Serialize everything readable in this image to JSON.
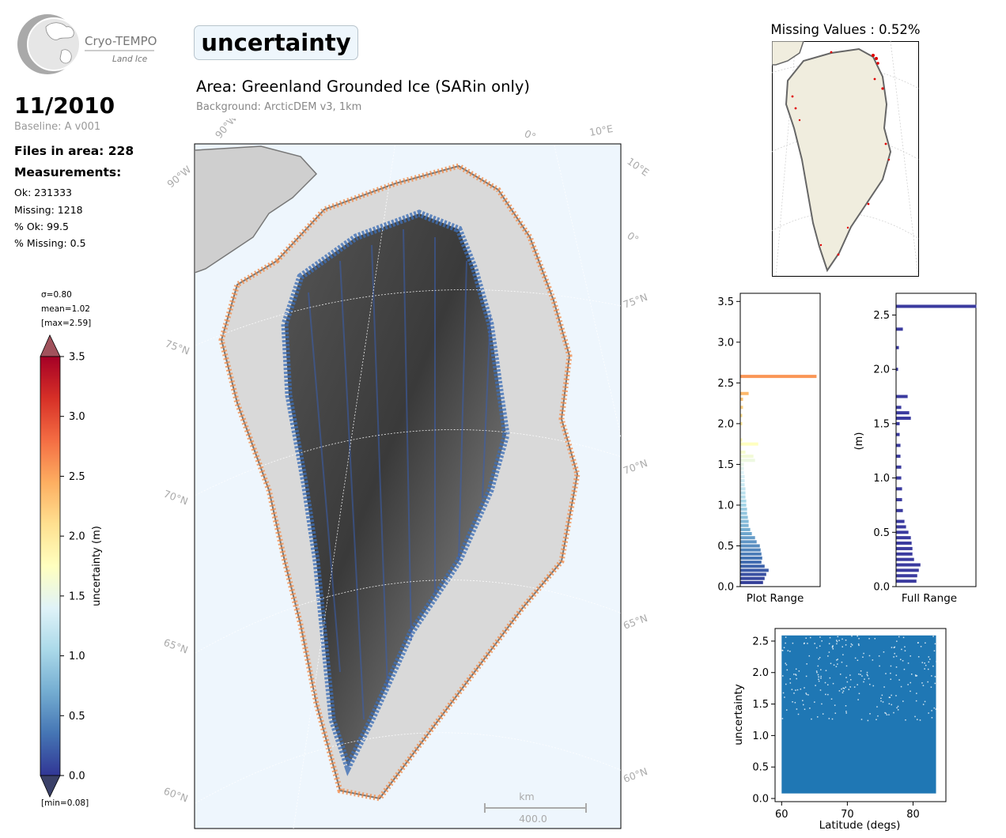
{
  "logo": {
    "name": "Cryo-TEMPO",
    "subtitle": "Land Ice"
  },
  "title": "uncertainty",
  "area": "Area: Greenland Grounded Ice (SARin only)",
  "background": "Background: ArcticDEM v3, 1km",
  "date": "11/2010",
  "baseline": "Baseline: A v001",
  "files": "Files in area: 228",
  "measurements_heading": "Measurements:",
  "stats": {
    "ok": "Ok: 231333",
    "missing": "Missing: 1218",
    "pct_ok": "% Ok: 99.5",
    "pct_missing": "% Missing: 0.5"
  },
  "missing_title": "Missing Values : 0.52%",
  "colors": {
    "low": "#313695",
    "mid": "#ffffbf",
    "high": "#a50026",
    "hist_full": "#3b3b9f",
    "scatter": "#1f77b4",
    "land": "#f0edde",
    "ocean": "#eef6fd"
  },
  "chart_data": [
    {
      "type": "colorbar",
      "label": "uncertainty (m)",
      "ticks": [
        "0.0",
        "0.5",
        "1.0",
        "1.5",
        "2.0",
        "2.5",
        "3.0",
        "3.5"
      ],
      "range": [
        0,
        3.5
      ],
      "sigma": "σ=0.80",
      "mean": "mean=1.02",
      "max": "[max=2.59]",
      "min": "[min=0.08]"
    },
    {
      "type": "map",
      "lat_labels": [
        "75°N",
        "70°N",
        "65°N",
        "60°N",
        "75°N",
        "70°N",
        "65°N",
        "60°N"
      ],
      "lon_labels": [
        "90°W",
        "90°W",
        "0°",
        "10°E",
        "10°E",
        "0°"
      ],
      "scalebar_unit": "km",
      "scalebar_value": "400.0"
    },
    {
      "type": "bar",
      "xlabel": "Plot Range",
      "ylim": [
        0,
        3.6
      ],
      "yticks": [
        "0.0",
        "0.5",
        "1.0",
        "1.5",
        "2.0",
        "2.5",
        "3.0",
        "3.5"
      ],
      "bins": [
        {
          "y": 0.05,
          "v": 0.28
        },
        {
          "y": 0.1,
          "v": 0.3
        },
        {
          "y": 0.15,
          "v": 0.32
        },
        {
          "y": 0.2,
          "v": 0.35
        },
        {
          "y": 0.25,
          "v": 0.3
        },
        {
          "y": 0.3,
          "v": 0.26
        },
        {
          "y": 0.35,
          "v": 0.27
        },
        {
          "y": 0.4,
          "v": 0.26
        },
        {
          "y": 0.45,
          "v": 0.25
        },
        {
          "y": 0.5,
          "v": 0.24
        },
        {
          "y": 0.55,
          "v": 0.2
        },
        {
          "y": 0.6,
          "v": 0.18
        },
        {
          "y": 0.65,
          "v": 0.14
        },
        {
          "y": 0.7,
          "v": 0.12
        },
        {
          "y": 0.75,
          "v": 0.1
        },
        {
          "y": 0.8,
          "v": 0.1
        },
        {
          "y": 0.85,
          "v": 0.09
        },
        {
          "y": 0.9,
          "v": 0.08
        },
        {
          "y": 0.95,
          "v": 0.08
        },
        {
          "y": 1.0,
          "v": 0.07
        },
        {
          "y": 1.05,
          "v": 0.07
        },
        {
          "y": 1.1,
          "v": 0.06
        },
        {
          "y": 1.15,
          "v": 0.06
        },
        {
          "y": 1.2,
          "v": 0.06
        },
        {
          "y": 1.25,
          "v": 0.05
        },
        {
          "y": 1.3,
          "v": 0.05
        },
        {
          "y": 1.35,
          "v": 0.05
        },
        {
          "y": 1.4,
          "v": 0.04
        },
        {
          "y": 1.45,
          "v": 0.04
        },
        {
          "y": 1.5,
          "v": 0.04
        },
        {
          "y": 1.55,
          "v": 0.18
        },
        {
          "y": 1.6,
          "v": 0.16
        },
        {
          "y": 1.65,
          "v": 0.06
        },
        {
          "y": 1.75,
          "v": 0.22
        },
        {
          "y": 1.8,
          "v": 0.02
        },
        {
          "y": 2.0,
          "v": 0.02
        },
        {
          "y": 2.1,
          "v": 0.02
        },
        {
          "y": 2.2,
          "v": 0.03
        },
        {
          "y": 2.3,
          "v": 0.03
        },
        {
          "y": 2.37,
          "v": 0.1
        },
        {
          "y": 2.58,
          "v": 0.95
        }
      ]
    },
    {
      "type": "bar",
      "xlabel": "Full Range",
      "ylabel": "(m)",
      "ylim": [
        0,
        2.7
      ],
      "yticks": [
        "0.0",
        "0.5",
        "1.0",
        "1.5",
        "2.0",
        "2.5"
      ],
      "bins": [
        {
          "y": 0.05,
          "v": 0.25
        },
        {
          "y": 0.1,
          "v": 0.26
        },
        {
          "y": 0.15,
          "v": 0.28
        },
        {
          "y": 0.2,
          "v": 0.3
        },
        {
          "y": 0.25,
          "v": 0.22
        },
        {
          "y": 0.3,
          "v": 0.2
        },
        {
          "y": 0.35,
          "v": 0.2
        },
        {
          "y": 0.4,
          "v": 0.19
        },
        {
          "y": 0.45,
          "v": 0.18
        },
        {
          "y": 0.5,
          "v": 0.15
        },
        {
          "y": 0.55,
          "v": 0.12
        },
        {
          "y": 0.6,
          "v": 0.1
        },
        {
          "y": 0.7,
          "v": 0.08
        },
        {
          "y": 0.8,
          "v": 0.07
        },
        {
          "y": 0.9,
          "v": 0.07
        },
        {
          "y": 1.0,
          "v": 0.06
        },
        {
          "y": 1.1,
          "v": 0.06
        },
        {
          "y": 1.2,
          "v": 0.05
        },
        {
          "y": 1.3,
          "v": 0.05
        },
        {
          "y": 1.4,
          "v": 0.04
        },
        {
          "y": 1.5,
          "v": 0.04
        },
        {
          "y": 1.55,
          "v": 0.18
        },
        {
          "y": 1.6,
          "v": 0.16
        },
        {
          "y": 1.65,
          "v": 0.06
        },
        {
          "y": 1.75,
          "v": 0.14
        },
        {
          "y": 2.0,
          "v": 0.02
        },
        {
          "y": 2.2,
          "v": 0.03
        },
        {
          "y": 2.37,
          "v": 0.08
        },
        {
          "y": 2.58,
          "v": 1.0
        }
      ]
    },
    {
      "type": "scatter",
      "xlabel": "Latitude (degs)",
      "ylabel": "uncertainty",
      "xlim": [
        59,
        85
      ],
      "ylim": [
        -0.05,
        2.7
      ],
      "xticks": [
        60,
        70,
        80
      ],
      "yticks": [
        "0.0",
        "0.5",
        "1.0",
        "1.5",
        "2.0",
        "2.5"
      ],
      "x_range": [
        60,
        83.5
      ],
      "y_range": [
        0.08,
        2.59
      ]
    }
  ]
}
